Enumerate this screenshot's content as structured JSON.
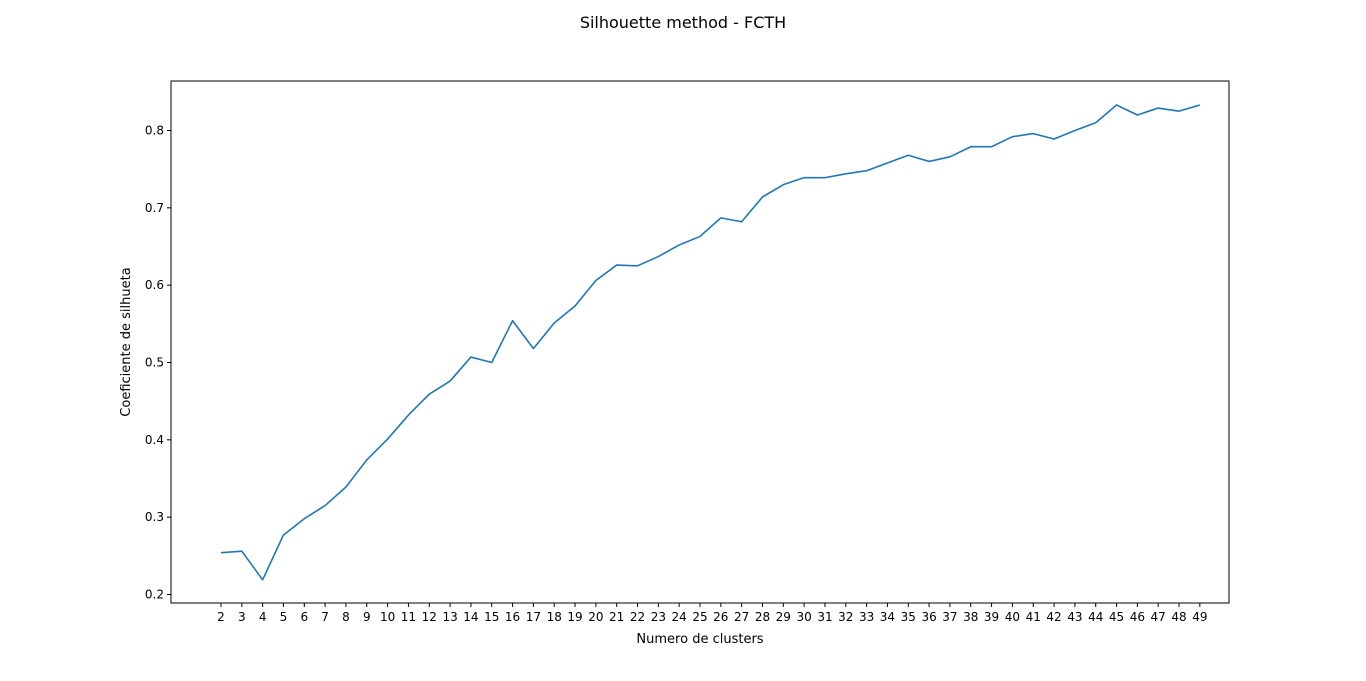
{
  "chart_data": {
    "type": "line",
    "title": "Silhouette method - FCTH",
    "xlabel": "Numero de clusters",
    "ylabel": "Coeficiente de silhueta",
    "x": [
      2,
      3,
      4,
      5,
      6,
      7,
      8,
      9,
      10,
      11,
      12,
      13,
      14,
      15,
      16,
      17,
      18,
      19,
      20,
      21,
      22,
      23,
      24,
      25,
      26,
      27,
      28,
      29,
      30,
      31,
      32,
      33,
      34,
      35,
      36,
      37,
      38,
      39,
      40,
      41,
      42,
      43,
      44,
      45,
      46,
      47,
      48,
      49
    ],
    "series": [
      {
        "color": "#1f77b4",
        "values": [
          0.254,
          0.256,
          0.219,
          0.277,
          0.298,
          0.315,
          0.339,
          0.374,
          0.401,
          0.432,
          0.459,
          0.476,
          0.507,
          0.5,
          0.554,
          0.518,
          0.551,
          0.573,
          0.606,
          0.626,
          0.625,
          0.637,
          0.652,
          0.663,
          0.687,
          0.682,
          0.714,
          0.73,
          0.739,
          0.739,
          0.744,
          0.748,
          0.758,
          0.768,
          0.76,
          0.766,
          0.779,
          0.779,
          0.792,
          0.796,
          0.789,
          0.8,
          0.81,
          0.833,
          0.82,
          0.829,
          0.825,
          0.833
        ]
      }
    ],
    "xticks": [
      "2",
      "3",
      "4",
      "5",
      "6",
      "7",
      "8",
      "9",
      "10",
      "11",
      "12",
      "13",
      "14",
      "15",
      "16",
      "17",
      "18",
      "19",
      "20",
      "21",
      "22",
      "23",
      "24",
      "25",
      "26",
      "27",
      "28",
      "29",
      "30",
      "31",
      "32",
      "33",
      "34",
      "35",
      "36",
      "37",
      "38",
      "39",
      "40",
      "41",
      "42",
      "43",
      "44",
      "45",
      "46",
      "47",
      "48",
      "49"
    ],
    "yticks": [
      "0.2",
      "0.3",
      "0.4",
      "0.5",
      "0.6",
      "0.7",
      "0.8"
    ],
    "ytick_values": [
      0.2,
      0.3,
      0.4,
      0.5,
      0.6,
      0.7,
      0.8
    ],
    "xlim": [
      -0.4,
      50.4
    ],
    "ylim": [
      0.189,
      0.864
    ],
    "grid": false,
    "legend": "none"
  }
}
